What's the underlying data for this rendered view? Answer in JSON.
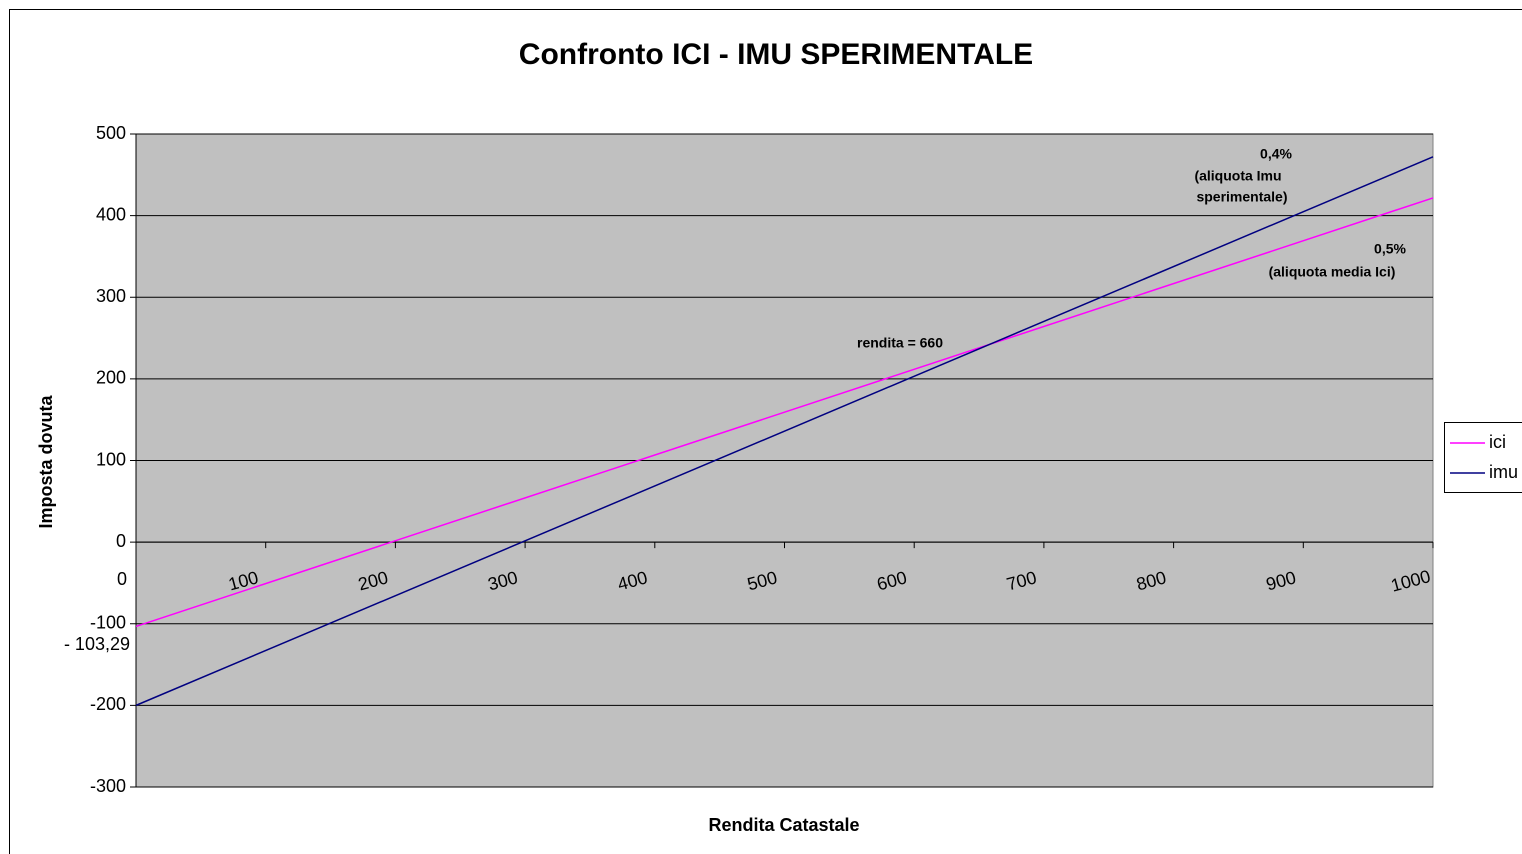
{
  "chart_data": {
    "type": "line",
    "title": "Confronto ICI - IMU SPERIMENTALE",
    "x_label": "Rendita Catastale",
    "y_label": "Imposta dovuta",
    "x": [
      0,
      1000
    ],
    "series": [
      {
        "name": "ici",
        "color": "#ff00ff",
        "values": [
          -103.29,
          421.71
        ]
      },
      {
        "name": "imu",
        "color": "#000080",
        "values": [
          -200,
          472
        ]
      }
    ],
    "xlim": [
      0,
      1000
    ],
    "xticks": [
      0,
      100,
      200,
      300,
      400,
      500,
      600,
      700,
      800,
      900,
      1000
    ],
    "ylim": [
      -300,
      500
    ],
    "yticks": [
      -300,
      -200,
      -100,
      0,
      100,
      200,
      300,
      400,
      500
    ],
    "grid": true,
    "plot_background": "#c0c0c0",
    "legend": "right",
    "annotations": [
      "- 103,29",
      "rendita = 660",
      "0,4%",
      "(aliquota Imu",
      "sperimentale)",
      "0,5%",
      "(aliquota media Ici)"
    ]
  }
}
